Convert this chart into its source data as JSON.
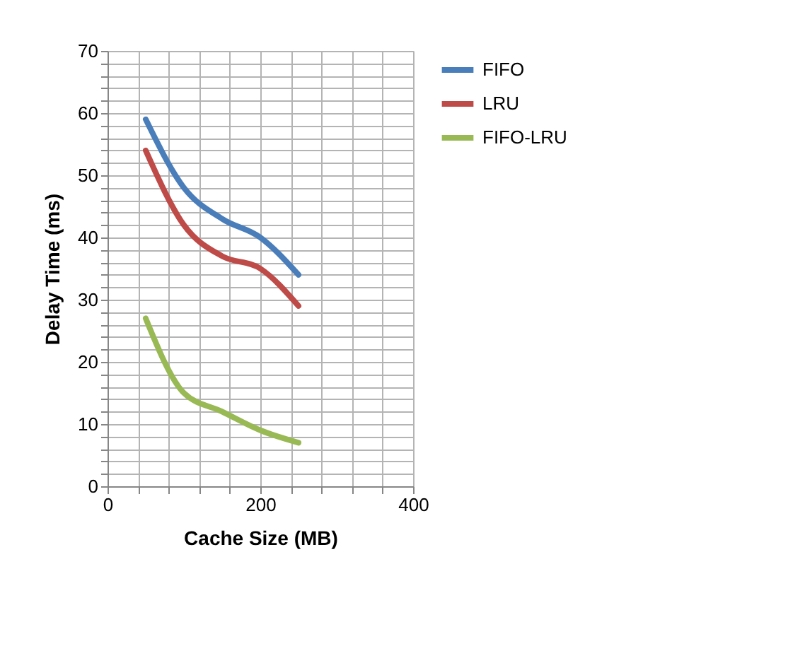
{
  "chart_data": {
    "type": "line",
    "xlabel": "Cache Size (MB)",
    "ylabel": "Delay Time (ms)",
    "x": [
      50,
      100,
      150,
      200,
      250
    ],
    "series": [
      {
        "name": "FIFO",
        "color": "#4a7ebb",
        "values": [
          59,
          48,
          43,
          40,
          34
        ]
      },
      {
        "name": "LRU",
        "color": "#be4b48",
        "values": [
          54,
          42,
          37,
          35,
          29
        ]
      },
      {
        "name": "FIFO-LRU",
        "color": "#98b954",
        "values": [
          27,
          15,
          12,
          9,
          7
        ]
      }
    ],
    "xlim": [
      0,
      400
    ],
    "xticks": [
      0,
      {
        "value": 40,
        "label": null
      },
      {
        "value": 80,
        "label": null
      },
      {
        "value": 120,
        "label": null
      },
      {
        "value": 160,
        "label": null
      },
      200,
      {
        "value": 240,
        "label": null
      },
      {
        "value": 280,
        "label": null
      },
      {
        "value": 320,
        "label": null
      },
      {
        "value": 360,
        "label": null
      },
      400
    ],
    "ylim": [
      0,
      70
    ],
    "yticks": [
      0,
      {
        "value": 2,
        "label": null
      },
      {
        "value": 4,
        "label": null
      },
      {
        "value": 6,
        "label": null
      },
      {
        "value": 8,
        "label": null
      },
      10,
      {
        "value": 12,
        "label": null
      },
      {
        "value": 14,
        "label": null
      },
      {
        "value": 16,
        "label": null
      },
      {
        "value": 18,
        "label": null
      },
      20,
      {
        "value": 22,
        "label": null
      },
      {
        "value": 24,
        "label": null
      },
      {
        "value": 26,
        "label": null
      },
      {
        "value": 28,
        "label": null
      },
      30,
      {
        "value": 32,
        "label": null
      },
      {
        "value": 34,
        "label": null
      },
      {
        "value": 36,
        "label": null
      },
      {
        "value": 38,
        "label": null
      },
      40,
      {
        "value": 42,
        "label": null
      },
      {
        "value": 44,
        "label": null
      },
      {
        "value": 46,
        "label": null
      },
      {
        "value": 48,
        "label": null
      },
      50,
      {
        "value": 52,
        "label": null
      },
      {
        "value": 54,
        "label": null
      },
      {
        "value": 56,
        "label": null
      },
      {
        "value": 58,
        "label": null
      },
      60,
      {
        "value": 62,
        "label": null
      },
      {
        "value": 64,
        "label": null
      },
      {
        "value": 66,
        "label": null
      },
      {
        "value": 68,
        "label": null
      },
      70
    ],
    "grid": true,
    "legend": "right",
    "marker": "none",
    "line_style": "solid"
  }
}
